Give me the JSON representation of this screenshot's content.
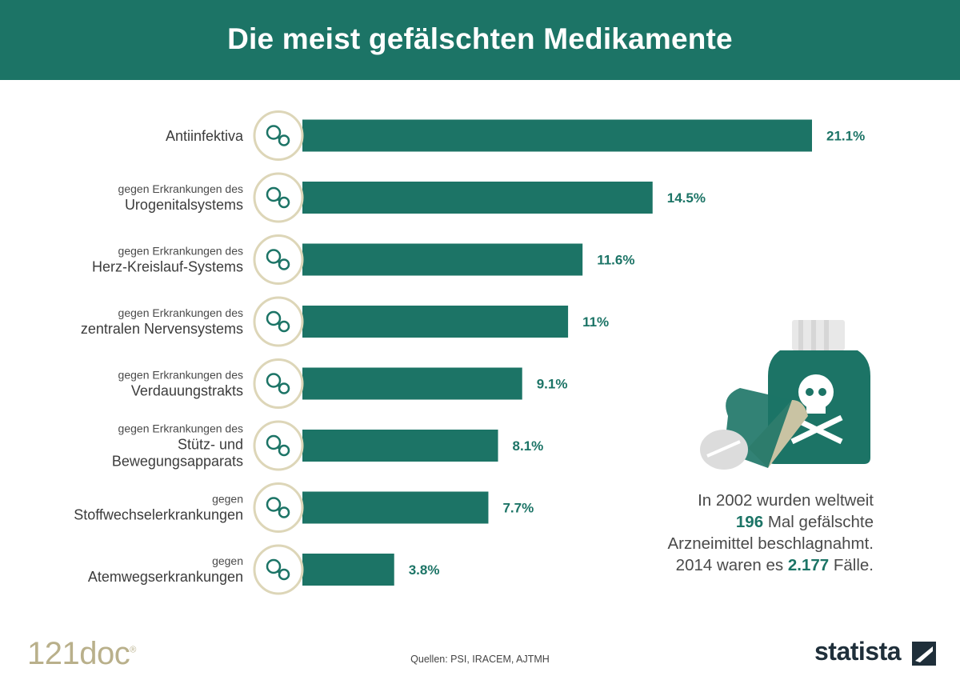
{
  "header": {
    "title": "Die meist gefälschten Medikamente"
  },
  "colors": {
    "header_bg": "#1c7466",
    "bar": "#1c7466",
    "icon_ring": "#ddd6b8",
    "accent_cream": "#b9b08b"
  },
  "chart_data": {
    "type": "bar",
    "orientation": "horizontal",
    "title": "Die meist gefälschten Medikamente",
    "categories": [
      "Antiinfektiva",
      "gegen Erkrankungen des Urogenitalsystems",
      "gegen Erkrankungen des Herz-Kreislauf-Systems",
      "gegen Erkrankungen des zentralen Nervensystems",
      "gegen Erkrankungen des Verdauungstrakts",
      "gegen Erkrankungen des Stütz- und Bewegungsapparats",
      "gegen Stoffwechselerkrankungen",
      "gegen Atemwegserkrankungen"
    ],
    "values": [
      21.1,
      14.5,
      11.6,
      11,
      9.1,
      8.1,
      7.7,
      3.8
    ],
    "unit": "%",
    "xlim": [
      0,
      21.1
    ],
    "grid": false,
    "legend": "none"
  },
  "rows": [
    {
      "small": "",
      "big": [
        "Antiinfektiva"
      ],
      "value_label": "21.1%",
      "icon": "bacteria-icon"
    },
    {
      "small": "gegen Erkrankungen des",
      "big": [
        "Urogenitalsystems"
      ],
      "value_label": "14.5%",
      "icon": "kidneys-icon"
    },
    {
      "small": "gegen Erkrankungen des",
      "big": [
        "Herz-Kreislauf-Systems"
      ],
      "value_label": "11.6%",
      "icon": "heart-icon"
    },
    {
      "small": "gegen Erkrankungen des",
      "big": [
        "zentralen Nervensystems"
      ],
      "value_label": "11%",
      "icon": "brain-icon"
    },
    {
      "small": "gegen Erkrankungen des",
      "big": [
        "Verdauungstrakts"
      ],
      "value_label": "9.1%",
      "icon": "stomach-icon"
    },
    {
      "small": "gegen Erkrankungen des",
      "big": [
        "Stütz- und",
        "Bewegungsapparats"
      ],
      "value_label": "8.1%",
      "icon": "joint-icon"
    },
    {
      "small": "gegen",
      "big": [
        "Stoffwechselerkrankungen"
      ],
      "value_label": "7.7%",
      "icon": "molecule-icon"
    },
    {
      "small": "gegen",
      "big": [
        "Atemwegserkrankungen"
      ],
      "value_label": "3.8%",
      "icon": "lungs-icon"
    }
  ],
  "note": {
    "line1": "In 2002 wurden weltweit",
    "line2_bold": "196",
    "line2_rest": " Mal gefälschte",
    "line3": "Arzneimittel beschlagnahmt.",
    "line4_pre": "2014 waren es ",
    "line4_bold": "2.177",
    "line4_post": " Fälle."
  },
  "footer": {
    "brand": "121doc",
    "brand_mark": "®",
    "source": "Quellen: PSI, IRACEM, AJTMH",
    "statista": "statista"
  }
}
